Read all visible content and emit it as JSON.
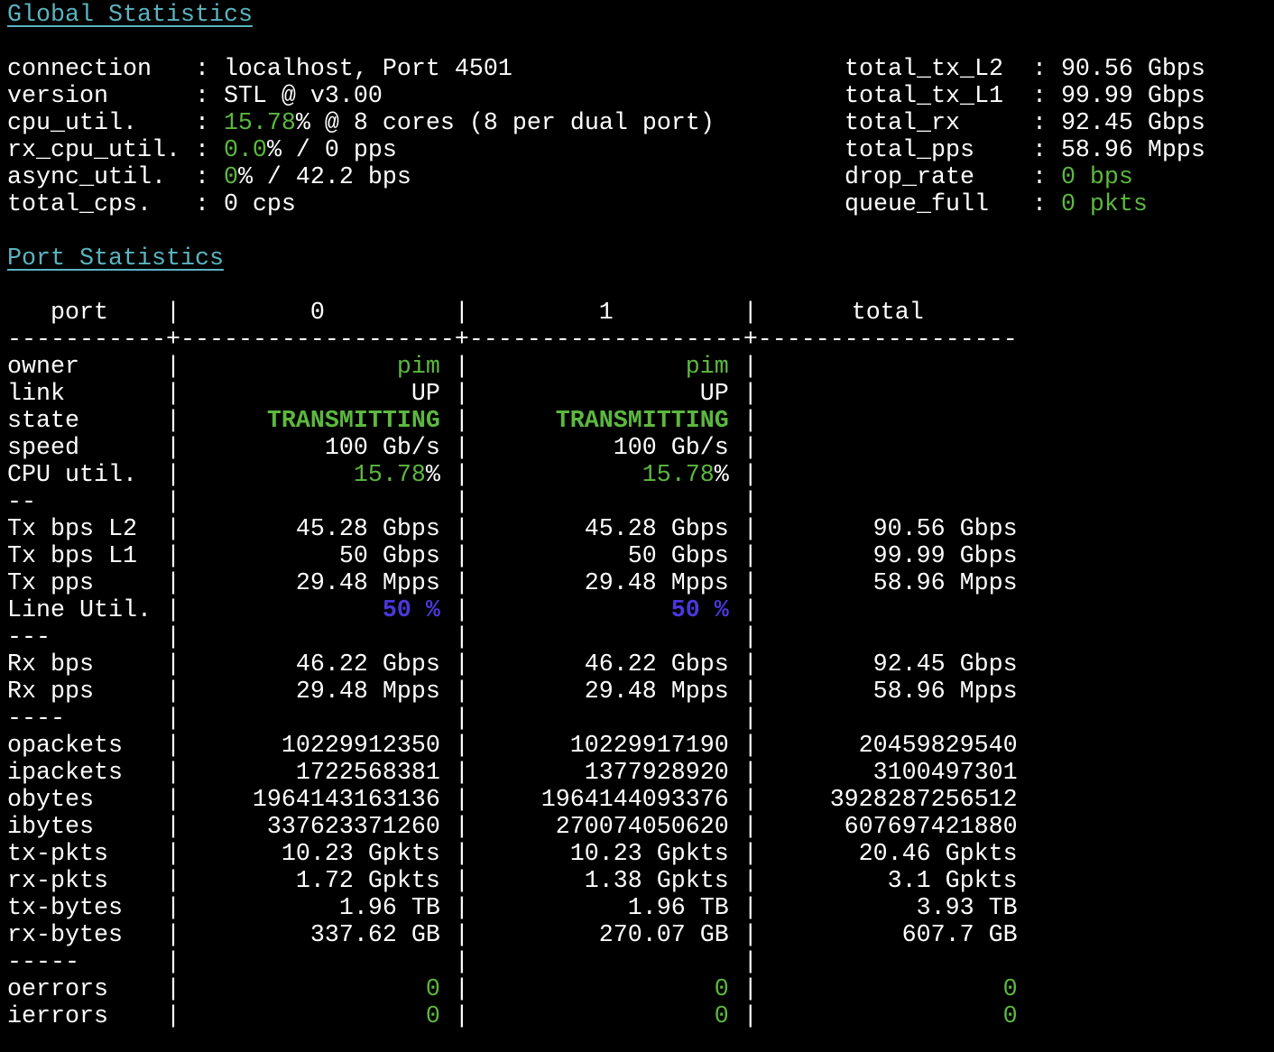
{
  "global": {
    "title": "Global Statistics",
    "left": [
      {
        "key": "connection",
        "parts": [
          {
            "t": "localhost, Port 4501"
          }
        ]
      },
      {
        "key": "version",
        "parts": [
          {
            "t": "STL @ v3.00"
          }
        ]
      },
      {
        "key": "cpu_util.",
        "parts": [
          {
            "t": "15.78",
            "c": "g"
          },
          {
            "t": "% @ 8 cores (8 per dual port)"
          }
        ]
      },
      {
        "key": "rx_cpu_util.",
        "parts": [
          {
            "t": "0.0",
            "c": "g"
          },
          {
            "t": "% / 0 pps"
          }
        ]
      },
      {
        "key": "async_util.",
        "parts": [
          {
            "t": "0",
            "c": "g"
          },
          {
            "t": "% / 42.2 bps"
          }
        ]
      },
      {
        "key": "total_cps.",
        "parts": [
          {
            "t": "0 cps"
          }
        ]
      }
    ],
    "right": [
      {
        "key": "total_tx_L2",
        "parts": [
          {
            "t": "90.56 Gbps"
          }
        ]
      },
      {
        "key": "total_tx_L1",
        "parts": [
          {
            "t": "99.99 Gbps"
          }
        ]
      },
      {
        "key": "total_rx",
        "parts": [
          {
            "t": "92.45 Gbps"
          }
        ]
      },
      {
        "key": "total_pps",
        "parts": [
          {
            "t": "58.96 Mpps"
          }
        ]
      },
      {
        "key": "drop_rate",
        "parts": [
          {
            "t": "0 bps",
            "c": "g"
          }
        ]
      },
      {
        "key": "queue_full",
        "parts": [
          {
            "t": "0 pkts",
            "c": "g"
          }
        ]
      }
    ]
  },
  "ports": {
    "title": "Port Statistics",
    "header": [
      "port",
      "0",
      "1",
      "total"
    ],
    "separator": "-----------+-------------------+-------------------+------------------",
    "rows": [
      {
        "label": "owner",
        "cells": [
          [
            {
              "t": "pim",
              "c": "g"
            }
          ],
          [
            {
              "t": "pim",
              "c": "g"
            }
          ],
          []
        ]
      },
      {
        "label": "link",
        "cells": [
          [
            {
              "t": "UP"
            }
          ],
          [
            {
              "t": "UP"
            }
          ],
          []
        ]
      },
      {
        "label": "state",
        "cells": [
          [
            {
              "t": "TRANSMITTING",
              "c": "g bold"
            }
          ],
          [
            {
              "t": "TRANSMITTING",
              "c": "g bold"
            }
          ],
          []
        ]
      },
      {
        "label": "speed",
        "cells": [
          [
            {
              "t": "100 Gb/s"
            }
          ],
          [
            {
              "t": "100 Gb/s"
            }
          ],
          []
        ]
      },
      {
        "label": "CPU util.",
        "cells": [
          [
            {
              "t": "15.78",
              "c": "g"
            },
            {
              "t": "%"
            }
          ],
          [
            {
              "t": "15.78",
              "c": "g"
            },
            {
              "t": "%"
            }
          ],
          []
        ]
      },
      {
        "label": "--",
        "cells": [
          [],
          [],
          []
        ]
      },
      {
        "label": "Tx bps L2",
        "cells": [
          [
            {
              "t": "45.28 Gbps"
            }
          ],
          [
            {
              "t": "45.28 Gbps"
            }
          ],
          [
            {
              "t": "90.56 Gbps"
            }
          ]
        ]
      },
      {
        "label": "Tx bps L1",
        "cells": [
          [
            {
              "t": "50 Gbps"
            }
          ],
          [
            {
              "t": "50 Gbps"
            }
          ],
          [
            {
              "t": "99.99 Gbps"
            }
          ]
        ]
      },
      {
        "label": "Tx pps",
        "cells": [
          [
            {
              "t": "29.48 Mpps"
            }
          ],
          [
            {
              "t": "29.48 Mpps"
            }
          ],
          [
            {
              "t": "58.96 Mpps"
            }
          ]
        ]
      },
      {
        "label": "Line Util.",
        "cells": [
          [
            {
              "t": "50 %",
              "c": "b"
            }
          ],
          [
            {
              "t": "50 %",
              "c": "b"
            }
          ],
          []
        ]
      },
      {
        "label": "---",
        "cells": [
          [],
          [],
          []
        ]
      },
      {
        "label": "Rx bps",
        "cells": [
          [
            {
              "t": "46.22 Gbps"
            }
          ],
          [
            {
              "t": "46.22 Gbps"
            }
          ],
          [
            {
              "t": "92.45 Gbps"
            }
          ]
        ]
      },
      {
        "label": "Rx pps",
        "cells": [
          [
            {
              "t": "29.48 Mpps"
            }
          ],
          [
            {
              "t": "29.48 Mpps"
            }
          ],
          [
            {
              "t": "58.96 Mpps"
            }
          ]
        ]
      },
      {
        "label": "----",
        "cells": [
          [],
          [],
          []
        ]
      },
      {
        "label": "opackets",
        "cells": [
          [
            {
              "t": "10229912350"
            }
          ],
          [
            {
              "t": "10229917190"
            }
          ],
          [
            {
              "t": "20459829540"
            }
          ]
        ]
      },
      {
        "label": "ipackets",
        "cells": [
          [
            {
              "t": "1722568381"
            }
          ],
          [
            {
              "t": "1377928920"
            }
          ],
          [
            {
              "t": "3100497301"
            }
          ]
        ]
      },
      {
        "label": "obytes",
        "cells": [
          [
            {
              "t": "1964143163136"
            }
          ],
          [
            {
              "t": "1964144093376"
            }
          ],
          [
            {
              "t": "3928287256512"
            }
          ]
        ]
      },
      {
        "label": "ibytes",
        "cells": [
          [
            {
              "t": "337623371260"
            }
          ],
          [
            {
              "t": "270074050620"
            }
          ],
          [
            {
              "t": "607697421880"
            }
          ]
        ]
      },
      {
        "label": "tx-pkts",
        "cells": [
          [
            {
              "t": "10.23 Gpkts"
            }
          ],
          [
            {
              "t": "10.23 Gpkts"
            }
          ],
          [
            {
              "t": "20.46 Gpkts"
            }
          ]
        ]
      },
      {
        "label": "rx-pkts",
        "cells": [
          [
            {
              "t": "1.72 Gpkts"
            }
          ],
          [
            {
              "t": "1.38 Gpkts"
            }
          ],
          [
            {
              "t": "3.1 Gpkts"
            }
          ]
        ]
      },
      {
        "label": "tx-bytes",
        "cells": [
          [
            {
              "t": "1.96 TB"
            }
          ],
          [
            {
              "t": "1.96 TB"
            }
          ],
          [
            {
              "t": "3.93 TB"
            }
          ]
        ]
      },
      {
        "label": "rx-bytes",
        "cells": [
          [
            {
              "t": "337.62 GB"
            }
          ],
          [
            {
              "t": "270.07 GB"
            }
          ],
          [
            {
              "t": "607.7 GB"
            }
          ]
        ]
      },
      {
        "label": "-----",
        "cells": [
          [],
          [],
          []
        ]
      },
      {
        "label": "oerrors",
        "cells": [
          [
            {
              "t": "0",
              "c": "g"
            }
          ],
          [
            {
              "t": "0",
              "c": "g"
            }
          ],
          [
            {
              "t": "0",
              "c": "g"
            }
          ]
        ]
      },
      {
        "label": "ierrors",
        "cells": [
          [
            {
              "t": "0",
              "c": "g"
            }
          ],
          [
            {
              "t": "0",
              "c": "g"
            }
          ],
          [
            {
              "t": "0",
              "c": "g"
            }
          ]
        ]
      }
    ]
  },
  "colors": {
    "green": "#5cb83f",
    "blue": "#4b38dc",
    "heading": "#5ab4c0",
    "text": "#ffffff",
    "background": "#000000"
  }
}
